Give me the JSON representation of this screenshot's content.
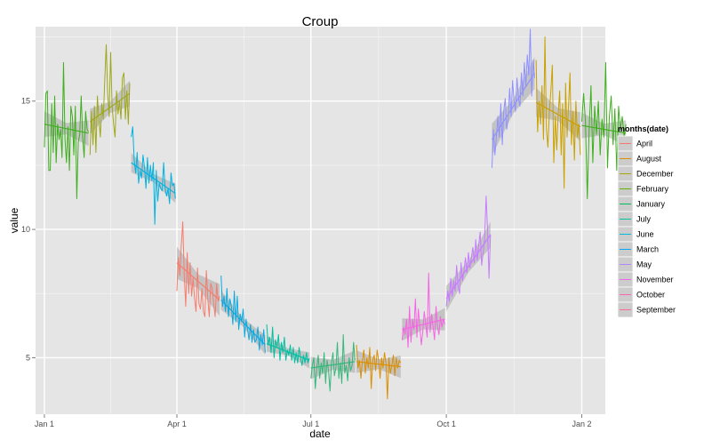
{
  "chart_data": {
    "type": "line",
    "title": "Croup",
    "xlabel": "date",
    "ylabel": "value",
    "x_axis": {
      "type": "date",
      "range": [
        "2012-12-26",
        "2014-01-17"
      ],
      "ticks": [
        {
          "date": "2013-01-01",
          "label": "Jan 1"
        },
        {
          "date": "2013-04-01",
          "label": "Apr 1"
        },
        {
          "date": "2013-07-01",
          "label": "Jul 1"
        },
        {
          "date": "2013-10-01",
          "label": "Oct 1"
        },
        {
          "date": "2014-01-01",
          "label": "Jan 2"
        }
      ]
    },
    "y_axis": {
      "range": [
        2.8,
        17.9
      ],
      "ticks": [
        5,
        10,
        15
      ],
      "tick_labels": [
        "5",
        "10",
        "15"
      ]
    },
    "grid": true,
    "legend": {
      "title": "months(date)",
      "placement": "right",
      "entries": [
        {
          "label": "April",
          "color": "#F8766D"
        },
        {
          "label": "August",
          "color": "#DB8E00"
        },
        {
          "label": "December",
          "color": "#AEA200"
        },
        {
          "label": "February",
          "color": "#64B200"
        },
        {
          "label": "January",
          "color": "#00BD5C"
        },
        {
          "label": "July",
          "color": "#00C1A7"
        },
        {
          "label": "June",
          "color": "#00BADE"
        },
        {
          "label": "March",
          "color": "#00A6FF"
        },
        {
          "label": "May",
          "color": "#B385FF"
        },
        {
          "label": "November",
          "color": "#EF67EB"
        },
        {
          "label": "October",
          "color": "#FF63B6"
        },
        {
          "label": "September",
          "color": "#FF6C91"
        }
      ]
    },
    "segments": [
      {
        "month": "January",
        "color": "#3EAF1E",
        "start": "2013-01-01",
        "end": "2013-01-31",
        "points": [
          13.2,
          15.3,
          15.4,
          12.3,
          12.3,
          14.9,
          13.0,
          15.2,
          12.6,
          14.1,
          13.5,
          13.9,
          12.8,
          16.5,
          13.5,
          12.6,
          14.0,
          12.3,
          14.8,
          14.4,
          12.9,
          14.8,
          11.2,
          13.4,
          13.7,
          15.2,
          13.6,
          12.8,
          14.6,
          13.9,
          13.8
        ],
        "trend": [
          14.1,
          13.75
        ],
        "band": 0.4
      },
      {
        "month": "February",
        "color": "#9EA81C",
        "start": "2013-02-01",
        "end": "2013-02-28",
        "points": [
          12.9,
          14.6,
          13.3,
          14.8,
          13.0,
          15.2,
          14.3,
          13.6,
          14.9,
          14.3,
          15.8,
          17.2,
          15.3,
          14.4,
          16.9,
          14.8,
          14.1,
          13.6,
          15.4,
          14.5,
          15.0,
          14.3,
          15.9,
          16.1,
          14.3,
          15.4,
          14.1,
          15.7
        ],
        "trend": [
          14.2,
          15.3
        ],
        "band": 0.4
      },
      {
        "month": "March",
        "color": "#00B2E2",
        "start": "2013-03-01",
        "end": "2013-03-31",
        "points": [
          13.6,
          14.0,
          12.7,
          12.2,
          13.0,
          11.8,
          12.3,
          12.0,
          12.9,
          12.4,
          11.6,
          12.8,
          11.8,
          12.5,
          11.9,
          12.6,
          10.2,
          12.3,
          11.1,
          11.8,
          11.6,
          11.5,
          12.6,
          11.6,
          11.3,
          11.6,
          11.0,
          12.2,
          11.7,
          11.8,
          11.2
        ],
        "trend": [
          12.6,
          11.4
        ],
        "band": 0.3
      },
      {
        "month": "April",
        "color": "#F57D6E",
        "start": "2013-04-01",
        "end": "2013-04-30",
        "points": [
          7.6,
          8.9,
          8.2,
          9.4,
          10.3,
          8.2,
          7.0,
          9.1,
          7.5,
          8.7,
          7.4,
          8.1,
          7.3,
          6.8,
          8.5,
          7.1,
          6.9,
          7.7,
          6.8,
          6.6,
          8.4,
          7.3,
          6.6,
          7.9,
          7.7,
          7.1,
          6.6,
          7.9,
          7.2,
          7.4
        ],
        "trend": [
          8.7,
          7.25
        ],
        "band": 0.5
      },
      {
        "month": "May",
        "color": "#0BA9E0",
        "start": "2013-05-01",
        "end": "2013-05-31",
        "points": [
          8.2,
          7.0,
          7.4,
          6.8,
          7.7,
          6.6,
          7.3,
          7.0,
          6.3,
          7.6,
          6.4,
          7.4,
          6.1,
          6.7,
          6.4,
          6.9,
          5.8,
          6.5,
          6.1,
          5.7,
          6.3,
          5.6,
          6.1,
          5.6,
          5.7,
          6.2,
          5.3,
          5.9,
          5.5,
          6.1,
          5.2
        ],
        "trend": [
          7.25,
          5.5
        ],
        "band": 0.3
      },
      {
        "month": "June",
        "color": "#00BFA0",
        "start": "2013-06-01",
        "end": "2013-06-30",
        "points": [
          6.3,
          5.5,
          5.8,
          5.2,
          6.2,
          5.0,
          5.7,
          5.4,
          5.9,
          4.9,
          5.6,
          5.2,
          5.8,
          4.9,
          5.3,
          5.1,
          5.5,
          4.9,
          5.4,
          4.8,
          5.2,
          4.8,
          5.4,
          5.0,
          4.7,
          5.1,
          4.8,
          5.2,
          4.8,
          5.0
        ],
        "trend": [
          5.55,
          4.9
        ],
        "band": 0.25
      },
      {
        "month": "July",
        "color": "#35B779",
        "start": "2013-07-01",
        "end": "2013-07-31",
        "points": [
          4.2,
          4.7,
          5.0,
          3.8,
          4.6,
          5.1,
          4.2,
          4.8,
          4.4,
          5.2,
          4.0,
          4.9,
          4.5,
          3.7,
          4.8,
          5.2,
          4.3,
          4.6,
          5.6,
          4.2,
          4.8,
          4.0,
          5.9,
          4.4,
          4.7,
          4.1,
          5.0,
          4.5,
          4.7,
          5.6,
          4.9
        ],
        "trend": [
          4.6,
          4.85
        ],
        "band": 0.35
      },
      {
        "month": "August",
        "color": "#DB8E00",
        "start": "2013-08-01",
        "end": "2013-08-31",
        "points": [
          5.5,
          4.6,
          4.9,
          4.2,
          4.9,
          5.3,
          4.4,
          5.0,
          4.6,
          5.4,
          3.8,
          4.9,
          5.1,
          4.5,
          5.3,
          4.9,
          4.2,
          5.0,
          4.6,
          5.2,
          4.8,
          3.4,
          5.0,
          4.4,
          4.7,
          5.1,
          4.3,
          5.0,
          4.6,
          4.9,
          4.8
        ],
        "trend": [
          4.85,
          4.65
        ],
        "band": 0.35
      },
      {
        "month": "September",
        "color": "#F564E3",
        "start": "2013-09-01",
        "end": "2013-09-30",
        "points": [
          5.7,
          6.2,
          5.9,
          6.5,
          5.4,
          7.0,
          5.6,
          6.5,
          6.1,
          7.3,
          5.8,
          6.9,
          6.2,
          5.5,
          6.0,
          6.8,
          6.3,
          5.8,
          8.3,
          6.0,
          6.7,
          6.2,
          5.7,
          7.0,
          6.2,
          5.9,
          6.6,
          6.2,
          6.5,
          6.3
        ],
        "trend": [
          6.1,
          6.5
        ],
        "band": 0.35
      },
      {
        "month": "October",
        "color": "#C77CFF",
        "start": "2013-10-01",
        "end": "2013-10-31",
        "points": [
          7.0,
          7.6,
          7.2,
          8.1,
          7.4,
          8.0,
          7.6,
          8.6,
          7.8,
          7.5,
          8.7,
          8.0,
          8.4,
          8.9,
          8.3,
          9.1,
          8.5,
          8.9,
          9.3,
          8.7,
          9.6,
          8.8,
          9.4,
          9.9,
          8.6,
          9.1,
          9.6,
          11.3,
          10.0,
          8.1,
          9.8
        ],
        "trend": [
          7.3,
          9.8
        ],
        "band": 0.4
      },
      {
        "month": "November",
        "color": "#8F91FF",
        "start": "2013-11-01",
        "end": "2013-11-30",
        "points": [
          12.4,
          13.9,
          12.9,
          13.6,
          14.4,
          13.6,
          14.9,
          13.3,
          14.6,
          15.1,
          13.9,
          14.3,
          15.5,
          14.4,
          15.8,
          15.0,
          14.6,
          15.9,
          15.1,
          14.8,
          16.1,
          15.2,
          16.5,
          15.6,
          16.8,
          16.0,
          17.8,
          15.2,
          16.6,
          15.9
        ],
        "trend": [
          13.5,
          16.1
        ],
        "band": 0.5
      },
      {
        "month": "December",
        "color": "#C9A000",
        "start": "2013-12-01",
        "end": "2013-12-31",
        "points": [
          16.6,
          13.8,
          15.0,
          14.1,
          15.6,
          13.5,
          17.5,
          13.9,
          13.2,
          14.6,
          15.4,
          16.4,
          12.6,
          14.4,
          13.1,
          14.5,
          15.4,
          12.9,
          14.9,
          11.6,
          15.7,
          13.6,
          14.8,
          16.1,
          13.3,
          14.6,
          12.7,
          15.0,
          13.6,
          14.1,
          12.9
        ],
        "trend": [
          14.95,
          14.0
        ],
        "band": 0.45
      },
      {
        "month": "January",
        "color": "#3EAF1E",
        "start": "2014-01-01",
        "end": "2014-01-31",
        "points": [
          14.2,
          15.3,
          14.2,
          11.2,
          13.9,
          15.6,
          12.6,
          14.8,
          13.7,
          15.0,
          12.9,
          14.3,
          13.6,
          16.5,
          12.4,
          14.4,
          15.2,
          13.3,
          14.7,
          12.3,
          14.8,
          13.9,
          14.4,
          13.6,
          14.1
        ],
        "trend": [
          14.05,
          13.75
        ],
        "band": 0.4
      }
    ]
  }
}
